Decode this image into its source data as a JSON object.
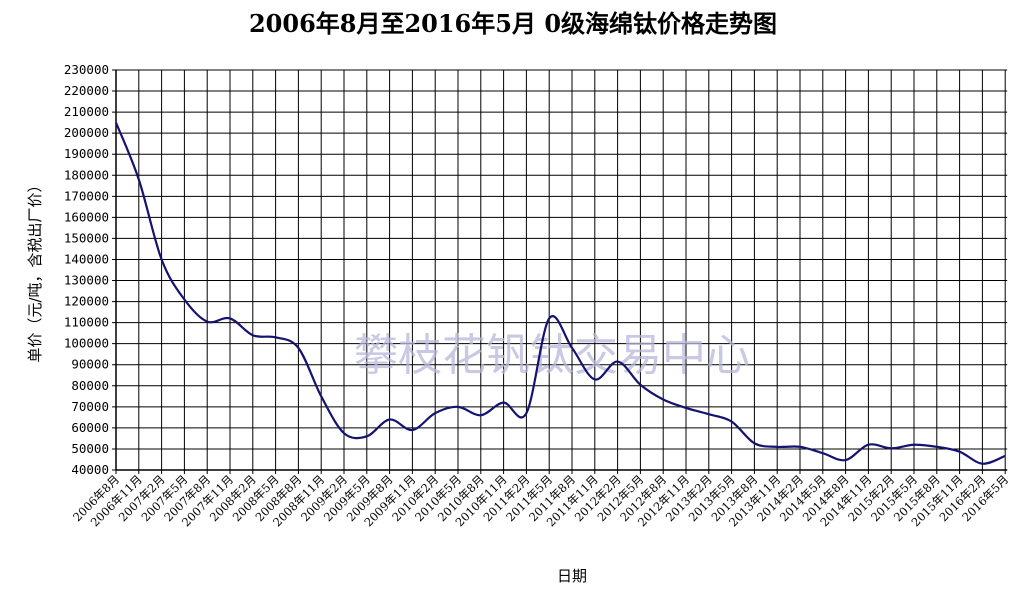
{
  "chart_data": {
    "type": "line",
    "title": "2006年8月至2016年5月 0级海绵钛价格走势图",
    "xlabel": "日期",
    "ylabel": "单价（元/吨，含税出厂价）",
    "watermark": "攀枝花钒钛交易中心",
    "ylim": [
      40000,
      230000
    ],
    "ytick_step": 10000,
    "grid": true,
    "line_color": "#141470",
    "categories": [
      "2006年8月",
      "2006年11月",
      "2007年2月",
      "2007年5月",
      "2007年8月",
      "2007年11月",
      "2008年2月",
      "2008年5月",
      "2008年8月",
      "2008年11月",
      "2009年2月",
      "2009年5月",
      "2009年8月",
      "2009年11月",
      "2010年2月",
      "2010年5月",
      "2010年8月",
      "2010年11月",
      "2011年2月",
      "2011年5月",
      "2011年8月",
      "2011年11月",
      "2012年2月",
      "2012年5月",
      "2012年8月",
      "2012年11月",
      "2013年2月",
      "2013年5月",
      "2013年8月",
      "2013年11月",
      "2014年2月",
      "2014年5月",
      "2014年8月",
      "2014年11月",
      "2015年2月",
      "2015年5月",
      "2015年8月",
      "2015年11月",
      "2016年2月",
      "2016年5月"
    ],
    "values": [
      205000,
      178000,
      140000,
      121000,
      110500,
      112000,
      104000,
      103000,
      98000,
      75000,
      57500,
      56000,
      64000,
      59000,
      67000,
      70000,
      66000,
      72000,
      67000,
      112000,
      98000,
      83000,
      91500,
      80500,
      73500,
      69500,
      66500,
      63000,
      52700,
      51000,
      51000,
      48000,
      44700,
      52000,
      50300,
      52000,
      51000,
      48700,
      43000,
      46700
    ]
  }
}
